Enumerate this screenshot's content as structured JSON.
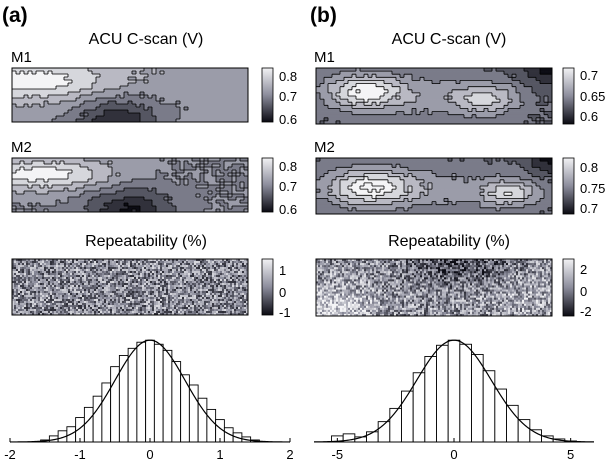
{
  "chart_data": [
    {
      "panel": "(a)",
      "type": "heatmap",
      "title": "ACU C-scan (V)",
      "maps": [
        {
          "label": "M1",
          "colorbar_ticks": [
            "0.8",
            "0.7",
            "0.6"
          ],
          "range": [
            0.6,
            0.85
          ],
          "contoured": true
        },
        {
          "label": "M2",
          "colorbar_ticks": [
            "0.8",
            "0.7",
            "0.6"
          ],
          "range": [
            0.6,
            0.85
          ],
          "contoured": true
        }
      ]
    },
    {
      "panel": "(a)",
      "type": "heatmap",
      "title": "Repeatability (%)",
      "colorbar_ticks": [
        "1",
        "0",
        "-1"
      ],
      "range": [
        -1.4,
        1.4
      ],
      "contoured": false
    },
    {
      "panel": "(a)",
      "type": "bar",
      "subtype": "histogram with normal fit",
      "x": [
        -1.5,
        -1.375,
        -1.25,
        -1.125,
        -1.0,
        -0.875,
        -0.75,
        -0.625,
        -0.5,
        -0.375,
        -0.25,
        -0.125,
        0.0,
        0.125,
        0.25,
        0.375,
        0.5,
        0.625,
        0.75,
        0.875,
        1.0,
        1.125,
        1.25,
        1.375,
        1.5
      ],
      "values": [
        0.02,
        0.06,
        0.11,
        0.15,
        0.24,
        0.34,
        0.45,
        0.58,
        0.74,
        0.85,
        0.92,
        0.98,
        1.0,
        0.96,
        0.9,
        0.79,
        0.66,
        0.56,
        0.43,
        0.32,
        0.22,
        0.14,
        0.09,
        0.05,
        0.02
      ],
      "bin_width": 0.125,
      "fit": {
        "mean": 0.0,
        "sd": 0.5,
        "peak": 1.0
      },
      "xlim": [
        -2,
        2
      ],
      "xticks": [
        -2,
        -1,
        0,
        1,
        2
      ],
      "ylim": [
        0,
        1.1
      ]
    },
    {
      "panel": "(b)",
      "type": "heatmap",
      "title": "ACU C-scan (V)",
      "maps": [
        {
          "label": "M1",
          "colorbar_ticks": [
            "0.7",
            "0.65",
            "0.6"
          ],
          "range": [
            0.58,
            0.72
          ],
          "contoured": true
        },
        {
          "label": "M2",
          "colorbar_ticks": [
            "0.8",
            "0.75",
            "0.7"
          ],
          "range": [
            0.68,
            0.83
          ],
          "contoured": true
        }
      ]
    },
    {
      "panel": "(b)",
      "type": "heatmap",
      "title": "Repeatability (%)",
      "colorbar_ticks": [
        "2",
        "0",
        "-2"
      ],
      "range": [
        -3,
        3
      ],
      "contoured": false
    },
    {
      "panel": "(b)",
      "type": "bar",
      "subtype": "histogram with normal fit",
      "x": [
        -5.0,
        -4.5,
        -4.0,
        -3.5,
        -3.0,
        -2.5,
        -2.0,
        -1.5,
        -1.0,
        -0.5,
        0.0,
        0.5,
        1.0,
        1.5,
        2.0,
        2.5,
        3.0,
        3.5,
        4.0,
        4.5,
        5.0
      ],
      "values": [
        0.06,
        0.08,
        0.05,
        0.1,
        0.2,
        0.33,
        0.5,
        0.68,
        0.84,
        0.95,
        1.0,
        0.96,
        0.86,
        0.7,
        0.52,
        0.36,
        0.22,
        0.12,
        0.06,
        0.03,
        0.01
      ],
      "bin_width": 0.5,
      "fit": {
        "mean": 0.0,
        "sd": 1.6,
        "peak": 1.0
      },
      "xlim": [
        -6,
        6
      ],
      "xticks": [
        -5,
        0,
        5
      ],
      "ylim": [
        0,
        1.1
      ]
    }
  ]
}
